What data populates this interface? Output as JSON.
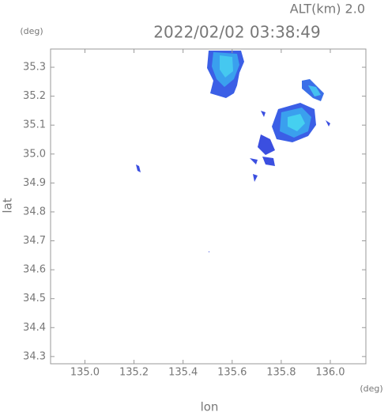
{
  "chart_data": {
    "type": "map",
    "subtitle": "ALT(km) 2.0",
    "title": "2022/02/02 03:38:49",
    "y_unit": "(deg)",
    "x_unit": "(deg)",
    "x_label": "lon",
    "y_label": "lat",
    "xlim": [
      134.86,
      136.145
    ],
    "xticks": [
      {
        "value": 135.0,
        "label": "135.0"
      },
      135.2,
      135.4,
      135.6,
      135.8,
      {
        "value": 136.0,
        "label": "136.0"
      }
    ],
    "ylim": [
      34.275,
      35.363
    ],
    "yticks": [
      35.3,
      35.2,
      35.1,
      {
        "value": 35.0,
        "label": "35.0"
      },
      34.9,
      34.8,
      34.7,
      34.6,
      34.5,
      34.4,
      34.3
    ]
  }
}
